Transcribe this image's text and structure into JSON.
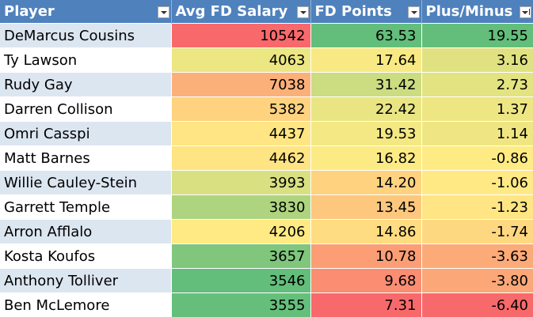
{
  "headers": [
    "Player",
    "Avg FD Salary",
    "FD Points",
    "Plus/Minus"
  ],
  "rows": [
    {
      "player": "DeMarcus Cousins",
      "salary": "10542",
      "points": "63.53",
      "pm": "19.55"
    },
    {
      "player": "Ty Lawson",
      "salary": "4063",
      "points": "17.64",
      "pm": "3.16"
    },
    {
      "player": "Rudy Gay",
      "salary": "7038",
      "points": "31.42",
      "pm": "2.73"
    },
    {
      "player": "Darren Collison",
      "salary": "5382",
      "points": "22.42",
      "pm": "1.37"
    },
    {
      "player": "Omri Casspi",
      "salary": "4437",
      "points": "19.53",
      "pm": "1.14"
    },
    {
      "player": "Matt Barnes",
      "salary": "4462",
      "points": "16.82",
      "pm": "-0.86"
    },
    {
      "player": "Willie Cauley-Stein",
      "salary": "3993",
      "points": "14.20",
      "pm": "-1.06"
    },
    {
      "player": "Garrett Temple",
      "salary": "3830",
      "points": "13.45",
      "pm": "-1.23"
    },
    {
      "player": "Arron Afflalo",
      "salary": "4206",
      "points": "14.86",
      "pm": "-1.74"
    },
    {
      "player": "Kosta Koufos",
      "salary": "3657",
      "points": "10.78",
      "pm": "-3.63"
    },
    {
      "player": "Anthony Tolliver",
      "salary": "3546",
      "points": "9.68",
      "pm": "-3.80"
    },
    {
      "player": "Ben McLemore",
      "salary": "3555",
      "points": "7.31",
      "pm": "-6.40"
    }
  ],
  "colors": {
    "header_bg": "#4f81bd",
    "band_odd": "#dce6f1",
    "band_even": "#ffffff",
    "scale_low": "#63be7b",
    "scale_mid": "#ffeb84",
    "scale_high": "#f8696b"
  }
}
